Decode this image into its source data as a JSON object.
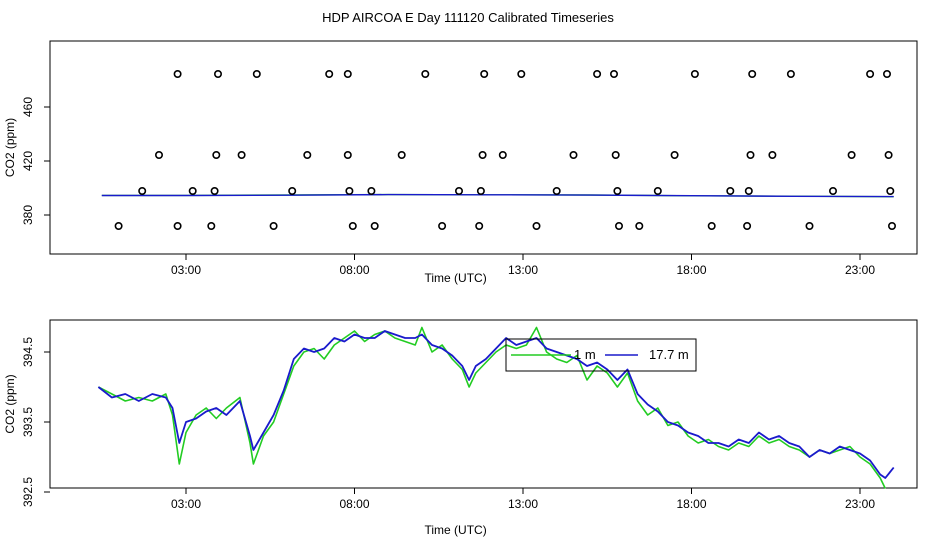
{
  "page": {
    "title": "HDP AIRCOA E  Day 111120  Calibrated Timeseries"
  },
  "colors": {
    "green": "#22cc22",
    "blue": "#1a1acc",
    "axis": "#000000"
  },
  "chart_data": [
    {
      "type": "scatter",
      "title": "",
      "xlabel": "Time (UTC)",
      "ylabel": "CO2 (ppm)",
      "xlim": [
        0,
        24
      ],
      "ylim": [
        360,
        480
      ],
      "x_ticks": [
        3,
        8,
        13,
        18,
        23
      ],
      "x_tick_labels": [
        "03:00",
        "08:00",
        "13:00",
        "18:00",
        "23:00"
      ],
      "y_ticks": [
        380,
        420,
        460
      ],
      "y_tick_labels": [
        "380",
        "420",
        "460"
      ],
      "points": [
        [
          1.0,
          370
        ],
        [
          1.7,
          395
        ],
        [
          2.2,
          424
        ],
        [
          2.75,
          484
        ],
        [
          2.75,
          370
        ],
        [
          3.2,
          395
        ],
        [
          3.75,
          370
        ],
        [
          3.85,
          395
        ],
        [
          3.9,
          424
        ],
        [
          3.95,
          484
        ],
        [
          4.65,
          424
        ],
        [
          5.1,
          484
        ],
        [
          5.6,
          370
        ],
        [
          6.15,
          395
        ],
        [
          6.6,
          424
        ],
        [
          7.25,
          484
        ],
        [
          7.8,
          484
        ],
        [
          7.8,
          424
        ],
        [
          7.85,
          395
        ],
        [
          7.95,
          370
        ],
        [
          8.5,
          395
        ],
        [
          8.6,
          370
        ],
        [
          9.4,
          424
        ],
        [
          10.1,
          484
        ],
        [
          10.6,
          370
        ],
        [
          11.1,
          395
        ],
        [
          11.7,
          370
        ],
        [
          11.75,
          395
        ],
        [
          11.8,
          424
        ],
        [
          11.85,
          484
        ],
        [
          12.4,
          424
        ],
        [
          12.95,
          484
        ],
        [
          13.4,
          370
        ],
        [
          14.0,
          395
        ],
        [
          14.5,
          424
        ],
        [
          15.2,
          484
        ],
        [
          15.7,
          484
        ],
        [
          15.75,
          424
        ],
        [
          15.8,
          395
        ],
        [
          15.85,
          370
        ],
        [
          16.45,
          370
        ],
        [
          17.0,
          395
        ],
        [
          17.5,
          424
        ],
        [
          18.1,
          484
        ],
        [
          18.6,
          370
        ],
        [
          19.15,
          395
        ],
        [
          19.65,
          370
        ],
        [
          19.7,
          395
        ],
        [
          19.75,
          424
        ],
        [
          19.8,
          484
        ],
        [
          20.4,
          424
        ],
        [
          20.95,
          484
        ],
        [
          21.5,
          370
        ],
        [
          22.2,
          395
        ],
        [
          22.75,
          424
        ],
        [
          23.3,
          484
        ],
        [
          23.8,
          484
        ],
        [
          23.85,
          424
        ],
        [
          23.9,
          395
        ],
        [
          23.95,
          370
        ]
      ],
      "series": [
        {
          "values": [
            [
              0.5,
              393.9
            ],
            [
              3,
              393.9
            ],
            [
              6,
              394.2
            ],
            [
              9,
              394.5
            ],
            [
              12,
              394.4
            ],
            [
              15,
              394.2
            ],
            [
              18,
              393.5
            ],
            [
              21,
              393.2
            ],
            [
              24,
              392.8
            ]
          ]
        },
        {
          "values": [
            [
              0.5,
              393.8
            ],
            [
              3,
              393.8
            ],
            [
              6,
              394.0
            ],
            [
              9,
              394.5
            ],
            [
              12,
              394.4
            ],
            [
              15,
              394.1
            ],
            [
              18,
              393.6
            ],
            [
              21,
              393.1
            ],
            [
              24,
              392.9
            ]
          ]
        }
      ]
    },
    {
      "type": "line",
      "title": "",
      "xlabel": "Time (UTC)",
      "ylabel": "CO2 (ppm)",
      "xlim": [
        0,
        24
      ],
      "ylim": [
        392.4,
        395.0
      ],
      "x_ticks": [
        3,
        8,
        13,
        18,
        23
      ],
      "x_tick_labels": [
        "03:00",
        "08:00",
        "13:00",
        "18:00",
        "23:00"
      ],
      "y_ticks": [
        392.5,
        393.5,
        394.5
      ],
      "y_tick_labels": [
        "392.5",
        "393.5",
        "394.5"
      ],
      "legend": {
        "placement": "top-center",
        "entries": [
          "1 m",
          "17.7 m"
        ]
      },
      "series": [
        {
          "name": "1 m",
          "values": [
            [
              0.4,
              394.0
            ],
            [
              0.8,
              393.9
            ],
            [
              1.2,
              393.8
            ],
            [
              1.6,
              393.85
            ],
            [
              2.0,
              393.8
            ],
            [
              2.4,
              393.9
            ],
            [
              2.6,
              393.6
            ],
            [
              2.8,
              392.9
            ],
            [
              3.0,
              393.35
            ],
            [
              3.3,
              393.6
            ],
            [
              3.6,
              393.7
            ],
            [
              3.9,
              393.55
            ],
            [
              4.2,
              393.7
            ],
            [
              4.6,
              393.85
            ],
            [
              4.9,
              393.2
            ],
            [
              5.0,
              392.9
            ],
            [
              5.3,
              393.3
            ],
            [
              5.6,
              393.5
            ],
            [
              5.9,
              393.9
            ],
            [
              6.2,
              394.3
            ],
            [
              6.5,
              394.5
            ],
            [
              6.8,
              394.55
            ],
            [
              7.1,
              394.4
            ],
            [
              7.4,
              394.6
            ],
            [
              7.7,
              394.7
            ],
            [
              8.0,
              394.8
            ],
            [
              8.3,
              394.65
            ],
            [
              8.6,
              394.75
            ],
            [
              8.9,
              394.8
            ],
            [
              9.2,
              394.7
            ],
            [
              9.5,
              394.65
            ],
            [
              9.8,
              394.6
            ],
            [
              10.0,
              394.85
            ],
            [
              10.3,
              394.5
            ],
            [
              10.6,
              394.6
            ],
            [
              10.9,
              394.4
            ],
            [
              11.2,
              394.25
            ],
            [
              11.4,
              394.0
            ],
            [
              11.6,
              394.2
            ],
            [
              11.9,
              394.35
            ],
            [
              12.2,
              394.5
            ],
            [
              12.5,
              394.6
            ],
            [
              12.8,
              394.55
            ],
            [
              13.1,
              394.6
            ],
            [
              13.4,
              394.85
            ],
            [
              13.7,
              394.5
            ],
            [
              14.0,
              394.4
            ],
            [
              14.3,
              394.35
            ],
            [
              14.6,
              394.45
            ],
            [
              14.9,
              394.1
            ],
            [
              15.2,
              394.3
            ],
            [
              15.5,
              394.2
            ],
            [
              15.8,
              394.0
            ],
            [
              16.1,
              394.2
            ],
            [
              16.4,
              393.8
            ],
            [
              16.7,
              393.6
            ],
            [
              17.0,
              393.7
            ],
            [
              17.3,
              393.45
            ],
            [
              17.6,
              393.5
            ],
            [
              17.9,
              393.3
            ],
            [
              18.2,
              393.2
            ],
            [
              18.5,
              393.25
            ],
            [
              18.8,
              393.15
            ],
            [
              19.1,
              393.1
            ],
            [
              19.4,
              393.2
            ],
            [
              19.7,
              393.15
            ],
            [
              20.0,
              393.3
            ],
            [
              20.3,
              393.2
            ],
            [
              20.6,
              393.25
            ],
            [
              20.9,
              393.15
            ],
            [
              21.2,
              393.1
            ],
            [
              21.5,
              393.0
            ],
            [
              21.8,
              393.1
            ],
            [
              22.1,
              393.05
            ],
            [
              22.4,
              393.1
            ],
            [
              22.7,
              393.15
            ],
            [
              23.0,
              393.0
            ],
            [
              23.3,
              392.9
            ],
            [
              23.6,
              392.7
            ],
            [
              23.75,
              392.55
            ]
          ]
        },
        {
          "name": "17.7 m",
          "values": [
            [
              0.4,
              394.0
            ],
            [
              0.8,
              393.85
            ],
            [
              1.2,
              393.9
            ],
            [
              1.6,
              393.8
            ],
            [
              2.0,
              393.9
            ],
            [
              2.4,
              393.85
            ],
            [
              2.6,
              393.7
            ],
            [
              2.8,
              393.2
            ],
            [
              3.0,
              393.5
            ],
            [
              3.3,
              393.55
            ],
            [
              3.6,
              393.65
            ],
            [
              3.9,
              393.7
            ],
            [
              4.2,
              393.6
            ],
            [
              4.6,
              393.8
            ],
            [
              4.9,
              393.3
            ],
            [
              5.0,
              393.1
            ],
            [
              5.3,
              393.35
            ],
            [
              5.6,
              393.6
            ],
            [
              5.9,
              393.95
            ],
            [
              6.2,
              394.4
            ],
            [
              6.5,
              394.55
            ],
            [
              6.8,
              394.5
            ],
            [
              7.1,
              394.55
            ],
            [
              7.4,
              394.7
            ],
            [
              7.7,
              394.65
            ],
            [
              8.0,
              394.75
            ],
            [
              8.3,
              394.7
            ],
            [
              8.6,
              394.7
            ],
            [
              8.9,
              394.8
            ],
            [
              9.2,
              394.75
            ],
            [
              9.5,
              394.7
            ],
            [
              9.8,
              394.7
            ],
            [
              10.0,
              394.75
            ],
            [
              10.3,
              394.6
            ],
            [
              10.6,
              394.55
            ],
            [
              10.9,
              394.45
            ],
            [
              11.2,
              394.3
            ],
            [
              11.4,
              394.1
            ],
            [
              11.6,
              394.3
            ],
            [
              11.9,
              394.4
            ],
            [
              12.2,
              394.55
            ],
            [
              12.5,
              394.7
            ],
            [
              12.8,
              394.6
            ],
            [
              13.1,
              394.65
            ],
            [
              13.4,
              394.7
            ],
            [
              13.7,
              394.55
            ],
            [
              14.0,
              394.5
            ],
            [
              14.3,
              394.45
            ],
            [
              14.6,
              394.4
            ],
            [
              14.9,
              394.3
            ],
            [
              15.2,
              394.35
            ],
            [
              15.5,
              394.25
            ],
            [
              15.8,
              394.1
            ],
            [
              16.1,
              394.25
            ],
            [
              16.4,
              393.9
            ],
            [
              16.7,
              393.75
            ],
            [
              17.0,
              393.65
            ],
            [
              17.3,
              393.5
            ],
            [
              17.6,
              393.45
            ],
            [
              17.9,
              393.35
            ],
            [
              18.2,
              393.3
            ],
            [
              18.5,
              393.2
            ],
            [
              18.8,
              393.2
            ],
            [
              19.1,
              393.15
            ],
            [
              19.4,
              393.25
            ],
            [
              19.7,
              393.2
            ],
            [
              20.0,
              393.35
            ],
            [
              20.3,
              393.25
            ],
            [
              20.6,
              393.3
            ],
            [
              20.9,
              393.2
            ],
            [
              21.2,
              393.15
            ],
            [
              21.5,
              393.0
            ],
            [
              21.8,
              393.1
            ],
            [
              22.1,
              393.05
            ],
            [
              22.4,
              393.15
            ],
            [
              22.7,
              393.1
            ],
            [
              23.0,
              393.05
            ],
            [
              23.3,
              392.95
            ],
            [
              23.6,
              392.75
            ],
            [
              23.75,
              392.7
            ],
            [
              24.0,
              392.85
            ]
          ]
        }
      ]
    }
  ]
}
